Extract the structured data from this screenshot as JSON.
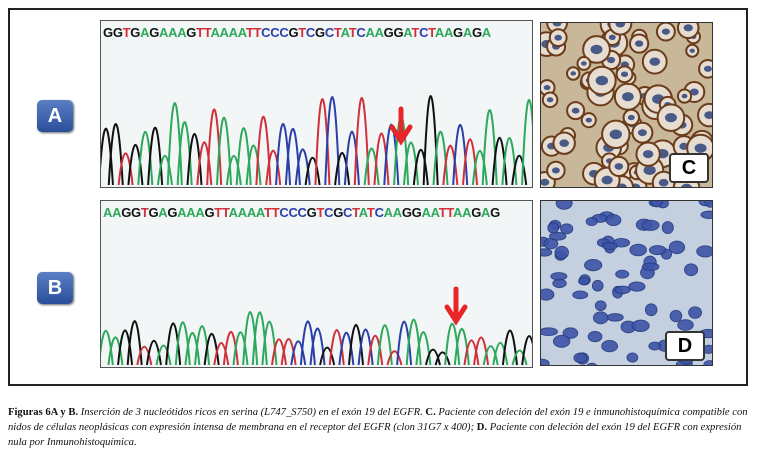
{
  "panels": {
    "a": {
      "label": "A",
      "sequence": "GGTGAGAAAGTTAAAATTCCCGTCGCTATCAAGGATCTAAGAGA"
    },
    "b": {
      "label": "B",
      "sequence": "AAGGTGAGAAAGTTAAAATTCCCGTCGCTATCAAGGAATTAAGAG"
    },
    "c": {
      "label": "C"
    },
    "d": {
      "label": "D"
    }
  },
  "base_colors": {
    "G": "#111111",
    "A": "#2ea85a",
    "T": "#d0303a",
    "C": "#2a3fa8"
  },
  "arrow_color": "#e8262a",
  "caption": {
    "p1_bold": "Figuras 6A y B.",
    "p1": " Inserción de 3 nucleótidos ricos en serina (L747_S750) en el exón 19 del EGFR. ",
    "p2_bold": "C.",
    "p2": " Paciente con deleción del exón 19 e inmunohistoquímica compatible con nidos de células neoplásicas con expresión intensa de membrana en el receptor del EGFR (clon 31G7 x 400); ",
    "p3_bold": "D.",
    "p3": " Paciente con deleción del exón 19 del EGFR con expresión nula por Inmunohistoquímica."
  }
}
